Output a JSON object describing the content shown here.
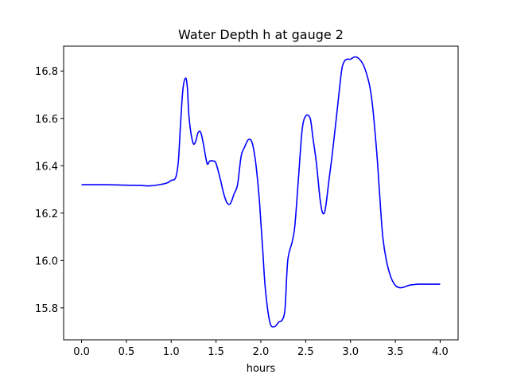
{
  "chart_data": {
    "type": "line",
    "title": "Water Depth h at gauge 2",
    "xlabel": "hours",
    "ylabel": "",
    "xlim": [
      -0.2,
      4.2
    ],
    "ylim": [
      15.665,
      16.905
    ],
    "xticks": [
      0.0,
      0.5,
      1.0,
      1.5,
      2.0,
      2.5,
      3.0,
      3.5,
      4.0
    ],
    "xtick_labels": [
      "0.0",
      "0.5",
      "1.0",
      "1.5",
      "2.0",
      "2.5",
      "3.0",
      "3.5",
      "4.0"
    ],
    "yticks": [
      15.8,
      16.0,
      16.2,
      16.4,
      16.6,
      16.8
    ],
    "ytick_labels": [
      "15.8",
      "16.0",
      "16.2",
      "16.4",
      "16.6",
      "16.8"
    ],
    "grid": false,
    "series": [
      {
        "color": "#0000ff",
        "x": [
          0.0,
          0.25,
          0.5,
          0.65,
          0.75,
          0.85,
          0.95,
          1.0,
          1.05,
          1.08,
          1.1,
          1.13,
          1.16,
          1.18,
          1.2,
          1.24,
          1.27,
          1.3,
          1.33,
          1.36,
          1.4,
          1.43,
          1.47,
          1.5,
          1.55,
          1.58,
          1.62,
          1.66,
          1.7,
          1.74,
          1.78,
          1.82,
          1.86,
          1.9,
          1.94,
          1.98,
          2.0,
          2.02,
          2.05,
          2.1,
          2.15,
          2.2,
          2.24,
          2.27,
          2.3,
          2.35,
          2.38,
          2.42,
          2.46,
          2.5,
          2.55,
          2.58,
          2.62,
          2.66,
          2.69,
          2.72,
          2.76,
          2.8,
          2.85,
          2.9,
          2.93,
          2.96,
          3.0,
          3.05,
          3.1,
          3.15,
          3.2,
          3.23,
          3.26,
          3.3,
          3.33,
          3.36,
          3.4,
          3.45,
          3.5,
          3.55,
          3.6,
          3.65,
          3.7,
          3.75,
          3.8,
          3.85,
          3.9,
          3.95,
          4.0
        ],
        "values": [
          16.32,
          16.32,
          16.318,
          16.317,
          16.315,
          16.319,
          16.327,
          16.338,
          16.35,
          16.42,
          16.55,
          16.72,
          16.77,
          16.73,
          16.6,
          16.5,
          16.5,
          16.54,
          16.54,
          16.49,
          16.41,
          16.42,
          16.42,
          16.41,
          16.34,
          16.29,
          16.245,
          16.24,
          16.28,
          16.32,
          16.44,
          16.48,
          16.51,
          16.5,
          16.42,
          16.27,
          16.16,
          16.05,
          15.88,
          15.74,
          15.72,
          15.74,
          15.75,
          15.8,
          16.0,
          16.08,
          16.15,
          16.35,
          16.55,
          16.61,
          16.6,
          16.52,
          16.41,
          16.26,
          16.2,
          16.22,
          16.34,
          16.46,
          16.63,
          16.8,
          16.84,
          16.85,
          16.85,
          16.86,
          16.85,
          16.82,
          16.76,
          16.7,
          16.6,
          16.42,
          16.25,
          16.1,
          16.0,
          15.93,
          15.895,
          15.885,
          15.888,
          15.895,
          15.898,
          15.9,
          15.9,
          15.9,
          15.9,
          15.9,
          15.9
        ]
      }
    ]
  }
}
